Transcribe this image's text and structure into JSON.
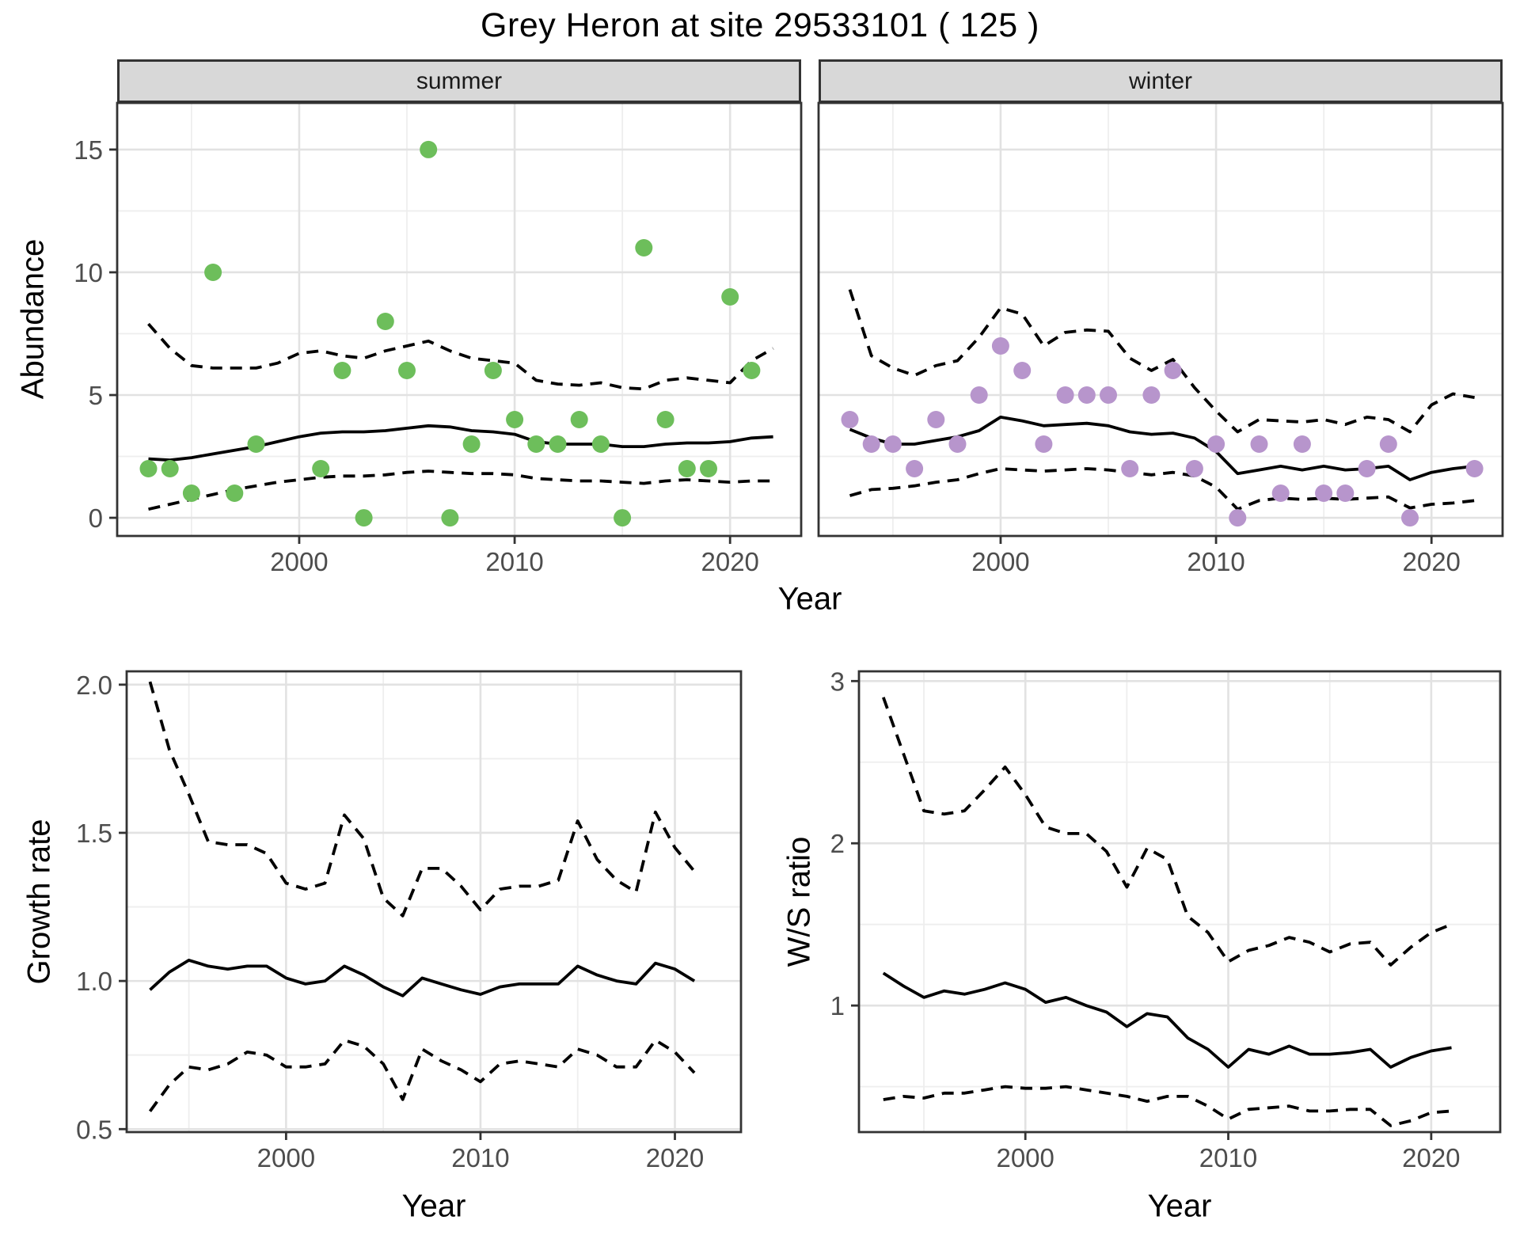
{
  "title": "Grey Heron at site 29533101 ( 125 )",
  "labels": {
    "x_axis": "Year",
    "abundance": "Abundance",
    "growth": "Growth rate",
    "ws": "W/S ratio",
    "facet_summer": "summer",
    "facet_winter": "winter"
  },
  "colors": {
    "summer_point": "#6dbe5b",
    "winter_point": "#b795cc",
    "line": "#000000",
    "grid_major": "#e2e2e2",
    "grid_minor": "#eeeeee",
    "panel_border": "#333333",
    "strip_bg": "#d8d8d8",
    "tick_text": "#4d4d4d"
  },
  "chart_data": [
    {
      "id": "abundance_summer",
      "type": "scatter",
      "facet": "summer",
      "xlabel": "Year",
      "ylabel": "Abundance",
      "xlim": [
        1991.55,
        2023.3
      ],
      "ylim": [
        -0.74,
        16.9
      ],
      "x_ticks": [
        2000,
        2010,
        2020
      ],
      "x_minor": [
        1995,
        2005,
        2015
      ],
      "y_ticks": [
        0,
        5,
        10,
        15
      ],
      "y_tick_labels": [
        "0",
        "5",
        "10",
        "15"
      ],
      "y_minor": [
        2.5,
        7.5,
        12.5
      ],
      "points": {
        "years": [
          1993,
          1994,
          1995,
          1996,
          1997,
          1998,
          2001,
          2002,
          2003,
          2004,
          2005,
          2006,
          2007,
          2008,
          2009,
          2010,
          2011,
          2012,
          2013,
          2014,
          2015,
          2016,
          2017,
          2018,
          2019,
          2020,
          2021
        ],
        "values": [
          2,
          2,
          1,
          10,
          1,
          3,
          2,
          6,
          0,
          8,
          6,
          15,
          0,
          3,
          6,
          4,
          3,
          3,
          4,
          3,
          0,
          11,
          4,
          2,
          2,
          9,
          6
        ]
      },
      "fit": {
        "year_start": 1993,
        "values": [
          2.4,
          2.35,
          2.45,
          2.6,
          2.75,
          2.9,
          3.1,
          3.3,
          3.45,
          3.5,
          3.5,
          3.55,
          3.65,
          3.75,
          3.7,
          3.55,
          3.5,
          3.4,
          3.1,
          3.0,
          3.0,
          3.0,
          2.9,
          2.9,
          3.0,
          3.05,
          3.05,
          3.1,
          3.25,
          3.3
        ]
      },
      "ci_upper": {
        "year_start": 1993,
        "values": [
          7.9,
          6.9,
          6.2,
          6.1,
          6.1,
          6.1,
          6.3,
          6.7,
          6.8,
          6.6,
          6.5,
          6.8,
          7.0,
          7.2,
          6.8,
          6.5,
          6.4,
          6.3,
          5.6,
          5.45,
          5.4,
          5.5,
          5.3,
          5.25,
          5.6,
          5.7,
          5.6,
          5.5,
          6.4,
          6.9
        ]
      },
      "ci_lower": {
        "year_start": 1993,
        "values": [
          0.35,
          0.55,
          0.75,
          0.95,
          1.15,
          1.3,
          1.45,
          1.55,
          1.65,
          1.7,
          1.7,
          1.75,
          1.85,
          1.9,
          1.85,
          1.8,
          1.8,
          1.75,
          1.6,
          1.55,
          1.5,
          1.5,
          1.45,
          1.4,
          1.5,
          1.55,
          1.5,
          1.45,
          1.5,
          1.5
        ]
      }
    },
    {
      "id": "abundance_winter",
      "type": "scatter",
      "facet": "winter",
      "xlabel": "Year",
      "ylabel": "Abundance",
      "xlim": [
        1991.55,
        2023.3
      ],
      "ylim": [
        -0.74,
        16.9
      ],
      "x_ticks": [
        2000,
        2010,
        2020
      ],
      "x_minor": [
        1995,
        2005,
        2015
      ],
      "y_ticks": [
        0,
        5,
        10,
        15
      ],
      "y_tick_labels": [
        "0",
        "5",
        "10",
        "15"
      ],
      "y_minor": [
        2.5,
        7.5,
        12.5
      ],
      "points": {
        "years": [
          1993,
          1994,
          1995,
          1996,
          1997,
          1998,
          1999,
          2000,
          2001,
          2002,
          2003,
          2004,
          2005,
          2006,
          2007,
          2008,
          2009,
          2010,
          2011,
          2012,
          2013,
          2014,
          2015,
          2016,
          2017,
          2018,
          2019,
          2022
        ],
        "values": [
          4,
          3,
          3,
          2,
          4,
          3,
          5,
          7,
          6,
          3,
          5,
          5,
          5,
          2,
          5,
          6,
          2,
          3,
          0,
          3,
          1,
          3,
          1,
          1,
          2,
          3,
          0,
          2
        ]
      },
      "fit": {
        "year_start": 1993,
        "values": [
          3.6,
          3.25,
          3.0,
          3.0,
          3.15,
          3.3,
          3.55,
          4.1,
          3.95,
          3.75,
          3.8,
          3.85,
          3.75,
          3.5,
          3.4,
          3.45,
          3.25,
          2.7,
          1.8,
          1.95,
          2.1,
          1.95,
          2.1,
          1.95,
          2.0,
          2.1,
          1.55,
          1.85,
          2.0,
          2.1
        ]
      },
      "ci_upper": {
        "year_start": 1993,
        "values": [
          9.3,
          6.6,
          6.1,
          5.8,
          6.2,
          6.4,
          7.35,
          8.55,
          8.3,
          7.0,
          7.55,
          7.65,
          7.6,
          6.5,
          6.0,
          6.45,
          5.3,
          4.35,
          3.5,
          4.0,
          3.95,
          3.9,
          4.0,
          3.8,
          4.1,
          4.0,
          3.5,
          4.6,
          5.05,
          4.9
        ]
      },
      "ci_lower": {
        "year_start": 1993,
        "values": [
          0.9,
          1.15,
          1.2,
          1.3,
          1.45,
          1.55,
          1.8,
          2.0,
          1.95,
          1.9,
          1.95,
          2.0,
          1.95,
          1.85,
          1.75,
          1.85,
          1.7,
          1.25,
          0.35,
          0.7,
          0.8,
          0.75,
          0.8,
          0.75,
          0.8,
          0.85,
          0.4,
          0.55,
          0.6,
          0.7
        ]
      }
    },
    {
      "id": "growth_rate",
      "type": "line",
      "xlabel": "Year",
      "ylabel": "Growth rate",
      "xlim": [
        1991.8,
        2023.4
      ],
      "ylim": [
        0.49,
        2.045
      ],
      "x_ticks": [
        2000,
        2010,
        2020
      ],
      "x_minor": [
        1995,
        2005,
        2015
      ],
      "y_ticks": [
        0.5,
        1.0,
        1.5,
        2.0
      ],
      "y_tick_labels": [
        "0.5",
        "1.0",
        "1.5",
        "2.0"
      ],
      "y_minor": [
        0.75,
        1.25,
        1.75
      ],
      "fit": {
        "year_start": 1993,
        "values": [
          0.97,
          1.03,
          1.07,
          1.05,
          1.04,
          1.05,
          1.05,
          1.01,
          0.99,
          1.0,
          1.05,
          1.02,
          0.98,
          0.95,
          1.01,
          0.99,
          0.97,
          0.955,
          0.98,
          0.99,
          0.99,
          0.99,
          1.05,
          1.02,
          1.0,
          0.99,
          1.06,
          1.04,
          1.0
        ]
      },
      "ci_upper": {
        "year_start": 1993,
        "values": [
          2.01,
          1.78,
          1.63,
          1.47,
          1.46,
          1.46,
          1.43,
          1.33,
          1.31,
          1.33,
          1.56,
          1.48,
          1.28,
          1.22,
          1.38,
          1.38,
          1.32,
          1.24,
          1.31,
          1.32,
          1.32,
          1.34,
          1.54,
          1.41,
          1.34,
          1.3,
          1.57,
          1.45,
          1.37
        ]
      },
      "ci_lower": {
        "year_start": 1993,
        "values": [
          0.56,
          0.65,
          0.71,
          0.7,
          0.72,
          0.76,
          0.75,
          0.71,
          0.71,
          0.72,
          0.8,
          0.78,
          0.72,
          0.6,
          0.77,
          0.73,
          0.7,
          0.66,
          0.72,
          0.73,
          0.72,
          0.71,
          0.77,
          0.75,
          0.71,
          0.71,
          0.8,
          0.76,
          0.69
        ]
      }
    },
    {
      "id": "ws_ratio",
      "type": "line",
      "xlabel": "Year",
      "ylabel": "W/S ratio",
      "xlim": [
        1991.8,
        2023.4
      ],
      "ylim": [
        0.22,
        3.06
      ],
      "x_ticks": [
        2000,
        2010,
        2020
      ],
      "x_minor": [
        1995,
        2005,
        2015
      ],
      "y_ticks": [
        1,
        2,
        3
      ],
      "y_tick_labels": [
        "1",
        "2",
        "3"
      ],
      "y_minor": [
        0.5,
        1.5,
        2.5
      ],
      "fit": {
        "year_start": 1993,
        "values": [
          1.2,
          1.12,
          1.05,
          1.09,
          1.07,
          1.1,
          1.14,
          1.1,
          1.02,
          1.05,
          1.0,
          0.96,
          0.87,
          0.95,
          0.93,
          0.8,
          0.73,
          0.62,
          0.73,
          0.7,
          0.75,
          0.7,
          0.7,
          0.71,
          0.73,
          0.62,
          0.68,
          0.72,
          0.74
        ]
      },
      "ci_upper": {
        "year_start": 1993,
        "values": [
          2.9,
          2.55,
          2.2,
          2.18,
          2.2,
          2.33,
          2.47,
          2.3,
          2.1,
          2.06,
          2.06,
          1.95,
          1.73,
          1.97,
          1.9,
          1.55,
          1.45,
          1.27,
          1.34,
          1.37,
          1.42,
          1.39,
          1.33,
          1.38,
          1.39,
          1.25,
          1.36,
          1.45,
          1.5
        ]
      },
      "ci_lower": {
        "year_start": 1993,
        "values": [
          0.42,
          0.44,
          0.43,
          0.46,
          0.46,
          0.48,
          0.5,
          0.49,
          0.49,
          0.5,
          0.48,
          0.46,
          0.44,
          0.41,
          0.44,
          0.44,
          0.38,
          0.3,
          0.36,
          0.37,
          0.38,
          0.35,
          0.35,
          0.36,
          0.36,
          0.26,
          0.29,
          0.34,
          0.35
        ]
      }
    }
  ]
}
